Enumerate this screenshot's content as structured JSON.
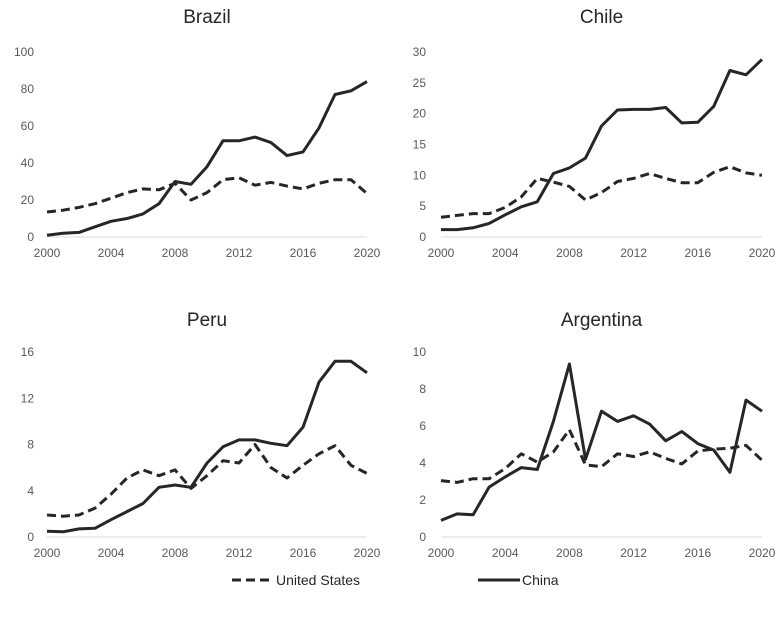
{
  "chart_data": [
    {
      "type": "line",
      "title": "Brazil",
      "x": [
        2000,
        2001,
        2002,
        2003,
        2004,
        2005,
        2006,
        2007,
        2008,
        2009,
        2010,
        2011,
        2012,
        2013,
        2014,
        2015,
        2016,
        2017,
        2018,
        2019,
        2020
      ],
      "series": [
        {
          "name": "United States",
          "style": "dashed",
          "values": [
            13.5,
            14.5,
            16,
            18,
            21,
            24,
            26,
            25.5,
            29,
            20,
            24,
            31,
            32,
            28,
            29.5,
            27.5,
            26,
            29,
            31,
            31,
            23.5
          ]
        },
        {
          "name": "China",
          "style": "solid",
          "values": [
            1,
            2,
            2.5,
            5.5,
            8.5,
            10,
            12.5,
            18,
            30,
            28.5,
            38,
            52,
            52,
            54,
            51,
            44,
            46,
            59,
            77,
            79,
            84
          ]
        }
      ],
      "xticks": [
        2000,
        2004,
        2008,
        2012,
        2016,
        2020
      ],
      "yticks": [
        0,
        20,
        40,
        60,
        80,
        100
      ],
      "ylim": [
        0,
        100
      ],
      "xlim": [
        2000,
        2020
      ]
    },
    {
      "type": "line",
      "title": "Chile",
      "x": [
        2000,
        2001,
        2002,
        2003,
        2004,
        2005,
        2006,
        2007,
        2008,
        2009,
        2010,
        2011,
        2012,
        2013,
        2014,
        2015,
        2016,
        2017,
        2018,
        2019,
        2020
      ],
      "series": [
        {
          "name": "United States",
          "style": "dashed",
          "values": [
            3.2,
            3.5,
            3.8,
            3.8,
            4.8,
            6.5,
            9.5,
            8.9,
            8.2,
            6,
            7.2,
            9,
            9.5,
            10.3,
            9.5,
            8.8,
            8.8,
            10.5,
            11.4,
            10.4,
            10
          ]
        },
        {
          "name": "China",
          "style": "solid",
          "values": [
            1.2,
            1.2,
            1.5,
            2.2,
            3.6,
            4.9,
            5.7,
            10.3,
            11.2,
            12.8,
            18,
            20.6,
            20.7,
            20.7,
            21,
            18.5,
            18.6,
            21.2,
            27,
            26.3,
            28.8
          ]
        }
      ],
      "xticks": [
        2000,
        2004,
        2008,
        2012,
        2016,
        2020
      ],
      "yticks": [
        0,
        5,
        10,
        15,
        20,
        25,
        30
      ],
      "ylim": [
        0,
        30
      ],
      "xlim": [
        2000,
        2020
      ]
    },
    {
      "type": "line",
      "title": "Peru",
      "x": [
        2000,
        2001,
        2002,
        2003,
        2004,
        2005,
        2006,
        2007,
        2008,
        2009,
        2010,
        2011,
        2012,
        2013,
        2014,
        2015,
        2016,
        2017,
        2018,
        2019,
        2020
      ],
      "series": [
        {
          "name": "United States",
          "style": "dashed",
          "values": [
            1.9,
            1.8,
            1.9,
            2.5,
            3.7,
            5.1,
            5.8,
            5.3,
            5.8,
            4.2,
            5.3,
            6.6,
            6.4,
            8,
            6,
            5.1,
            6.2,
            7.2,
            7.9,
            6.2,
            5.5
          ]
        },
        {
          "name": "China",
          "style": "solid",
          "values": [
            0.5,
            0.45,
            0.7,
            0.75,
            1.5,
            2.2,
            2.9,
            4.3,
            4.5,
            4.3,
            6.4,
            7.8,
            8.4,
            8.4,
            8.1,
            7.9,
            9.5,
            13.4,
            15.2,
            15.2,
            14.2
          ]
        }
      ],
      "xticks": [
        2000,
        2004,
        2008,
        2012,
        2016,
        2020
      ],
      "yticks": [
        0,
        4,
        8,
        12,
        16
      ],
      "ylim": [
        0,
        16
      ],
      "xlim": [
        2000,
        2020
      ]
    },
    {
      "type": "line",
      "title": "Argentina",
      "x": [
        2000,
        2001,
        2002,
        2003,
        2004,
        2005,
        2006,
        2007,
        2008,
        2009,
        2010,
        2011,
        2012,
        2013,
        2014,
        2015,
        2016,
        2017,
        2018,
        2019,
        2020
      ],
      "series": [
        {
          "name": "United States",
          "style": "dashed",
          "values": [
            3.05,
            2.95,
            3.15,
            3.15,
            3.7,
            4.5,
            4.05,
            4.6,
            5.8,
            3.9,
            3.8,
            4.5,
            4.35,
            4.6,
            4.25,
            3.95,
            4.65,
            4.75,
            4.8,
            4.95,
            4.15
          ]
        },
        {
          "name": "China",
          "style": "solid",
          "values": [
            0.9,
            1.25,
            1.2,
            2.7,
            3.25,
            3.75,
            3.65,
            6.25,
            9.35,
            4.2,
            6.8,
            6.25,
            6.55,
            6.1,
            5.2,
            5.7,
            5.05,
            4.7,
            3.5,
            7.4,
            6.8
          ]
        }
      ],
      "xticks": [
        2000,
        2004,
        2008,
        2012,
        2016,
        2020
      ],
      "yticks": [
        0,
        2,
        4,
        6,
        8,
        10
      ],
      "ylim": [
        0,
        10
      ],
      "xlim": [
        2000,
        2020
      ]
    }
  ],
  "legend": {
    "placement": "bottom",
    "items": [
      {
        "label": "United States",
        "style": "dashed",
        "color": "#262626"
      },
      {
        "label": "China",
        "style": "solid",
        "color": "#262626"
      }
    ]
  },
  "colors": {
    "line": "#262626",
    "axis": "#d9d9d9",
    "tick_text": "#595959",
    "title_text": "#262626"
  }
}
